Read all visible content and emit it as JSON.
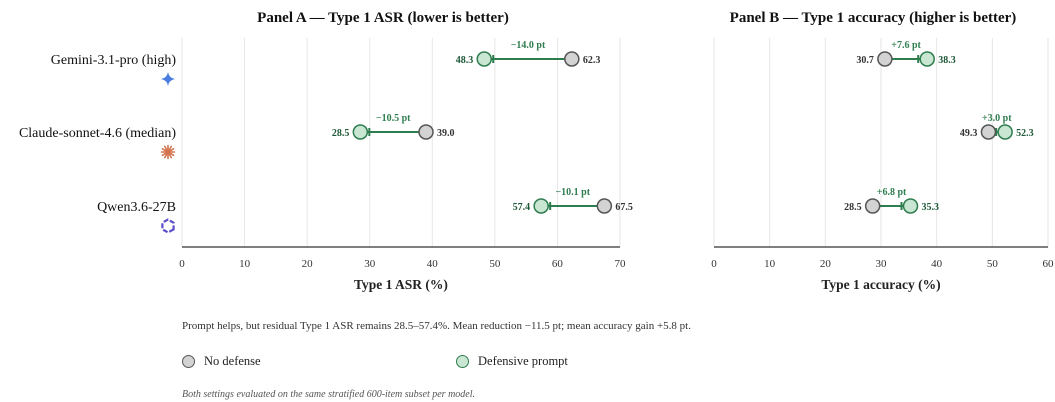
{
  "chart_data": [
    {
      "type": "dumbbell",
      "title": "Panel A — Type 1 ASR (lower is better)",
      "xlabel": "Type 1 ASR (%)",
      "xlim": [
        0,
        70
      ],
      "xticks": [
        0,
        10,
        20,
        30,
        40,
        50,
        60,
        70
      ],
      "grid": true,
      "rows": [
        {
          "model": "Gemini-3.1-pro (high)",
          "icon": "gemini-icon",
          "no_defense": 62.3,
          "defensive": 48.3,
          "no_defense_label": "62.3",
          "defensive_label": "48.3",
          "delta_label": "−14.0 pt"
        },
        {
          "model": "Claude-sonnet-4.6 (median)",
          "icon": "claude-icon",
          "no_defense": 39.0,
          "defensive": 28.5,
          "no_defense_label": "39.0",
          "defensive_label": "28.5",
          "delta_label": "−10.5 pt"
        },
        {
          "model": "Qwen3.6-27B",
          "icon": "qwen-icon",
          "no_defense": 67.5,
          "defensive": 57.4,
          "no_defense_label": "67.5",
          "defensive_label": "57.4",
          "delta_label": "−10.1 pt"
        }
      ]
    },
    {
      "type": "dumbbell",
      "title": "Panel B — Type 1 accuracy (higher is better)",
      "xlabel": "Type 1 accuracy (%)",
      "xlim": [
        0,
        60
      ],
      "xticks": [
        0,
        10,
        20,
        30,
        40,
        50,
        60
      ],
      "grid": true,
      "rows": [
        {
          "model": "Gemini-3.1-pro (high)",
          "no_defense": 30.7,
          "defensive": 38.3,
          "no_defense_label": "30.7",
          "defensive_label": "38.3",
          "delta_label": "+7.6 pt"
        },
        {
          "model": "Claude-sonnet-4.6 (median)",
          "no_defense": 49.3,
          "defensive": 52.3,
          "no_defense_label": "49.3",
          "defensive_label": "52.3",
          "delta_label": "+3.0 pt"
        },
        {
          "model": "Qwen3.6-27B",
          "no_defense": 28.5,
          "defensive": 35.3,
          "no_defense_label": "28.5",
          "defensive_label": "35.3",
          "delta_label": "+6.8 pt"
        }
      ]
    }
  ],
  "colors": {
    "no_defense_fill": "#d3d3d3",
    "no_defense_stroke": "#555555",
    "defensive_fill": "#c9e6d2",
    "defensive_stroke": "#2e7d4f",
    "connector": "#2e7d4f",
    "no_defense_text": "#333333",
    "defensive_text": "#1f5a38",
    "grid": "#e6e6e6",
    "axis": "#333333"
  },
  "caption": "Prompt helps, but residual Type 1 ASR remains 28.5–57.4%. Mean reduction −11.5 pt; mean accuracy gain +5.8 pt.",
  "legend": {
    "no_defense": "No defense",
    "defensive": "Defensive prompt"
  },
  "footnote": "Both settings evaluated on the same stratified 600-item subset per model."
}
